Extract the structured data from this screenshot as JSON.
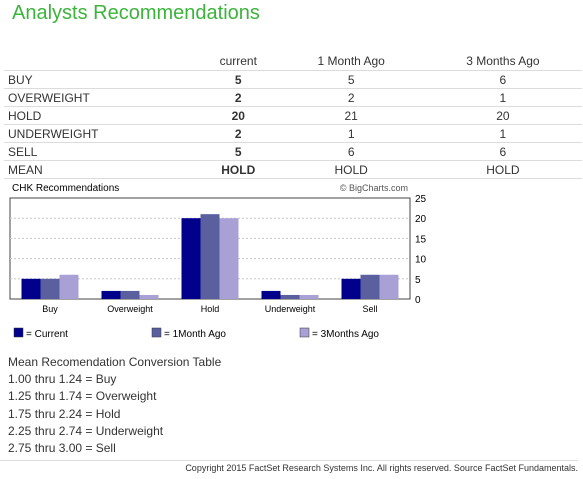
{
  "title": "Analysts Recommendations",
  "table": {
    "headers": [
      "",
      "current",
      "1 Month Ago",
      "3 Months Ago"
    ],
    "rows": [
      {
        "label": "BUY",
        "current": "5",
        "month1": "5",
        "month3": "6"
      },
      {
        "label": "OVERWEIGHT",
        "current": "2",
        "month1": "2",
        "month3": "1"
      },
      {
        "label": "HOLD",
        "current": "20",
        "month1": "21",
        "month3": "20"
      },
      {
        "label": "UNDERWEIGHT",
        "current": "2",
        "month1": "1",
        "month3": "1"
      },
      {
        "label": "SELL",
        "current": "5",
        "month1": "6",
        "month3": "6"
      },
      {
        "label": "MEAN",
        "current": "HOLD",
        "month1": "HOLD",
        "month3": "HOLD"
      }
    ]
  },
  "chart_data": {
    "type": "bar",
    "title": "CHK Recommendations",
    "watermark": "© BigCharts.com",
    "categories": [
      "Buy",
      "Overweight",
      "Hold",
      "Underweight",
      "Sell"
    ],
    "series": [
      {
        "name": "= Current",
        "color": "#00008b",
        "values": [
          5,
          2,
          20,
          2,
          5
        ]
      },
      {
        "name": "= 1Month Ago",
        "color": "#5a5f9e",
        "values": [
          5,
          2,
          21,
          1,
          6
        ]
      },
      {
        "name": "= 3Months Ago",
        "color": "#a9a1d6",
        "values": [
          6,
          1,
          20,
          1,
          6
        ]
      }
    ],
    "yticks": [
      0,
      5,
      10,
      15,
      20,
      25
    ],
    "ylim": [
      0,
      25
    ],
    "grid": true,
    "legend": "bottom"
  },
  "conversion": {
    "title": "Mean Recomendation Conversion Table",
    "lines": [
      "1.00 thru 1.24 = Buy",
      "1.25 thru 1.74 = Overweight",
      "1.75 thru 2.24 = Hold",
      "2.25 thru 2.74 = Underweight",
      "2.75 thru 3.00 = Sell"
    ]
  },
  "copyright": "Copyright 2015 FactSet Research Systems Inc. All rights reserved. Source FactSet Fundamentals."
}
